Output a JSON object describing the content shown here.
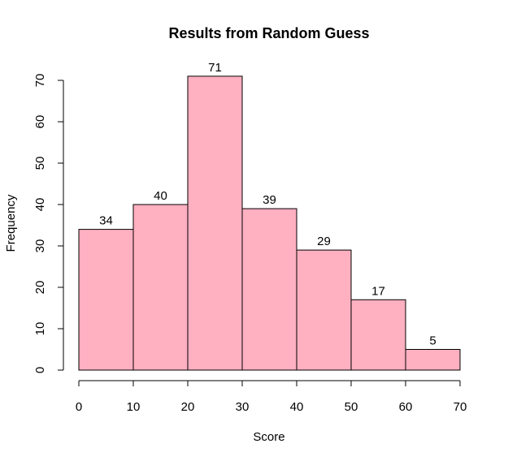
{
  "chart_data": {
    "type": "bar",
    "title": "Results from Random Guess",
    "xlabel": "Score",
    "ylabel": "Frequency",
    "bins": [
      [
        0,
        10
      ],
      [
        10,
        20
      ],
      [
        20,
        30
      ],
      [
        30,
        40
      ],
      [
        40,
        50
      ],
      [
        50,
        60
      ],
      [
        60,
        70
      ]
    ],
    "values": [
      34,
      40,
      71,
      39,
      29,
      17,
      5
    ],
    "data_labels": [
      "34",
      "40",
      "71",
      "39",
      "29",
      "17",
      "5"
    ],
    "xlim": [
      0,
      70
    ],
    "ylim": [
      0,
      70
    ],
    "x_ticks": [
      0,
      10,
      20,
      30,
      40,
      50,
      60,
      70
    ],
    "y_ticks": [
      0,
      10,
      20,
      30,
      40,
      50,
      60,
      70
    ],
    "bar_color": "#ffb0c1",
    "grid": false,
    "legend": "none"
  }
}
